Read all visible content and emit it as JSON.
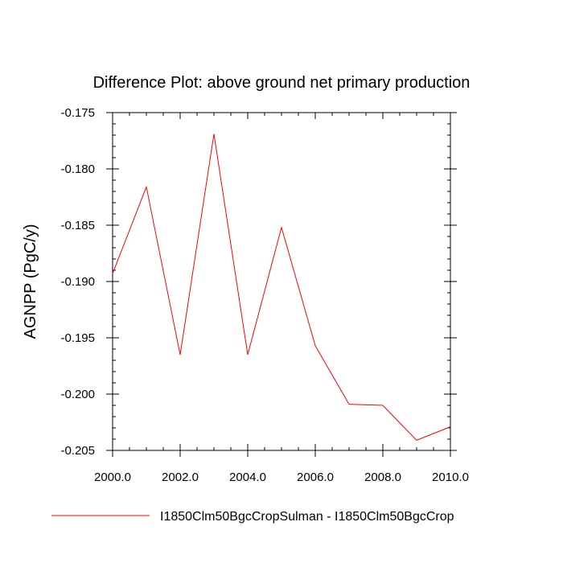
{
  "chart_data": {
    "type": "line",
    "title": "Difference Plot: above ground net primary production",
    "ylabel": "AGNPP  (PgC/y)",
    "xlabel": "",
    "xlim": [
      2000,
      2010
    ],
    "ylim": [
      -0.205,
      -0.175
    ],
    "x_ticks": [
      2000,
      2002,
      2004,
      2006,
      2008,
      2010
    ],
    "x_tick_labels": [
      "2000.0",
      "2002.0",
      "2004.0",
      "2006.0",
      "2008.0",
      "2010.0"
    ],
    "y_ticks": [
      -0.175,
      -0.18,
      -0.185,
      -0.19,
      -0.195,
      -0.2,
      -0.205
    ],
    "y_tick_labels": [
      "-0.175",
      "-0.180",
      "-0.185",
      "-0.190",
      "-0.195",
      "-0.200",
      "-0.205"
    ],
    "grid": false,
    "legend_position": "bottom",
    "x": [
      2000,
      2001,
      2002,
      2003,
      2004,
      2005,
      2006,
      2007,
      2008,
      2009,
      2010
    ],
    "series": [
      {
        "name": "I1850Clm50BgcCropSulman - I1850Clm50BgcCrop",
        "color": "#ff0000",
        "values": [
          -0.1893,
          -0.1816,
          -0.1965,
          -0.1769,
          -0.1965,
          -0.1852,
          -0.1957,
          -0.2009,
          -0.201,
          -0.2041,
          -0.2029
        ]
      }
    ]
  }
}
